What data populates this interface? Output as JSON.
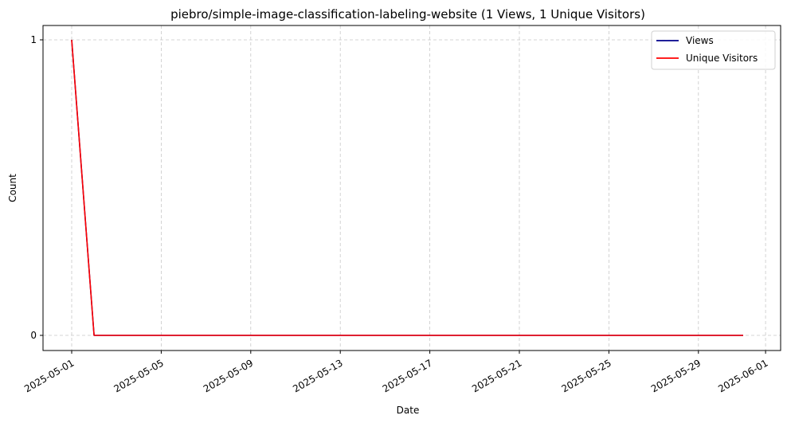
{
  "chart_data": {
    "type": "line",
    "title": "piebro/simple-image-classification-labeling-website (1 Views, 1 Unique Visitors)",
    "xlabel": "Date",
    "ylabel": "Count",
    "x": [
      "2025-05-01",
      "2025-05-02",
      "2025-05-03",
      "2025-05-04",
      "2025-05-05",
      "2025-05-06",
      "2025-05-07",
      "2025-05-08",
      "2025-05-09",
      "2025-05-10",
      "2025-05-11",
      "2025-05-12",
      "2025-05-13",
      "2025-05-14",
      "2025-05-15",
      "2025-05-16",
      "2025-05-17",
      "2025-05-18",
      "2025-05-19",
      "2025-05-20",
      "2025-05-21",
      "2025-05-22",
      "2025-05-23",
      "2025-05-24",
      "2025-05-25",
      "2025-05-26",
      "2025-05-27",
      "2025-05-28",
      "2025-05-29",
      "2025-05-30",
      "2025-05-31"
    ],
    "series": [
      {
        "name": "Views",
        "color": "#00008b",
        "values": [
          1,
          0,
          0,
          0,
          0,
          0,
          0,
          0,
          0,
          0,
          0,
          0,
          0,
          0,
          0,
          0,
          0,
          0,
          0,
          0,
          0,
          0,
          0,
          0,
          0,
          0,
          0,
          0,
          0,
          0,
          0
        ]
      },
      {
        "name": "Unique Visitors",
        "color": "#ff0000",
        "values": [
          1,
          0,
          0,
          0,
          0,
          0,
          0,
          0,
          0,
          0,
          0,
          0,
          0,
          0,
          0,
          0,
          0,
          0,
          0,
          0,
          0,
          0,
          0,
          0,
          0,
          0,
          0,
          0,
          0,
          0,
          0
        ]
      }
    ],
    "x_ticks": [
      "2025-05-01",
      "2025-05-05",
      "2025-05-09",
      "2025-05-13",
      "2025-05-17",
      "2025-05-21",
      "2025-05-25",
      "2025-05-29",
      "2025-06-01"
    ],
    "y_ticks": [
      0,
      1
    ],
    "ylim": [
      0,
      1
    ],
    "grid": true,
    "legend_position": "top-right"
  }
}
